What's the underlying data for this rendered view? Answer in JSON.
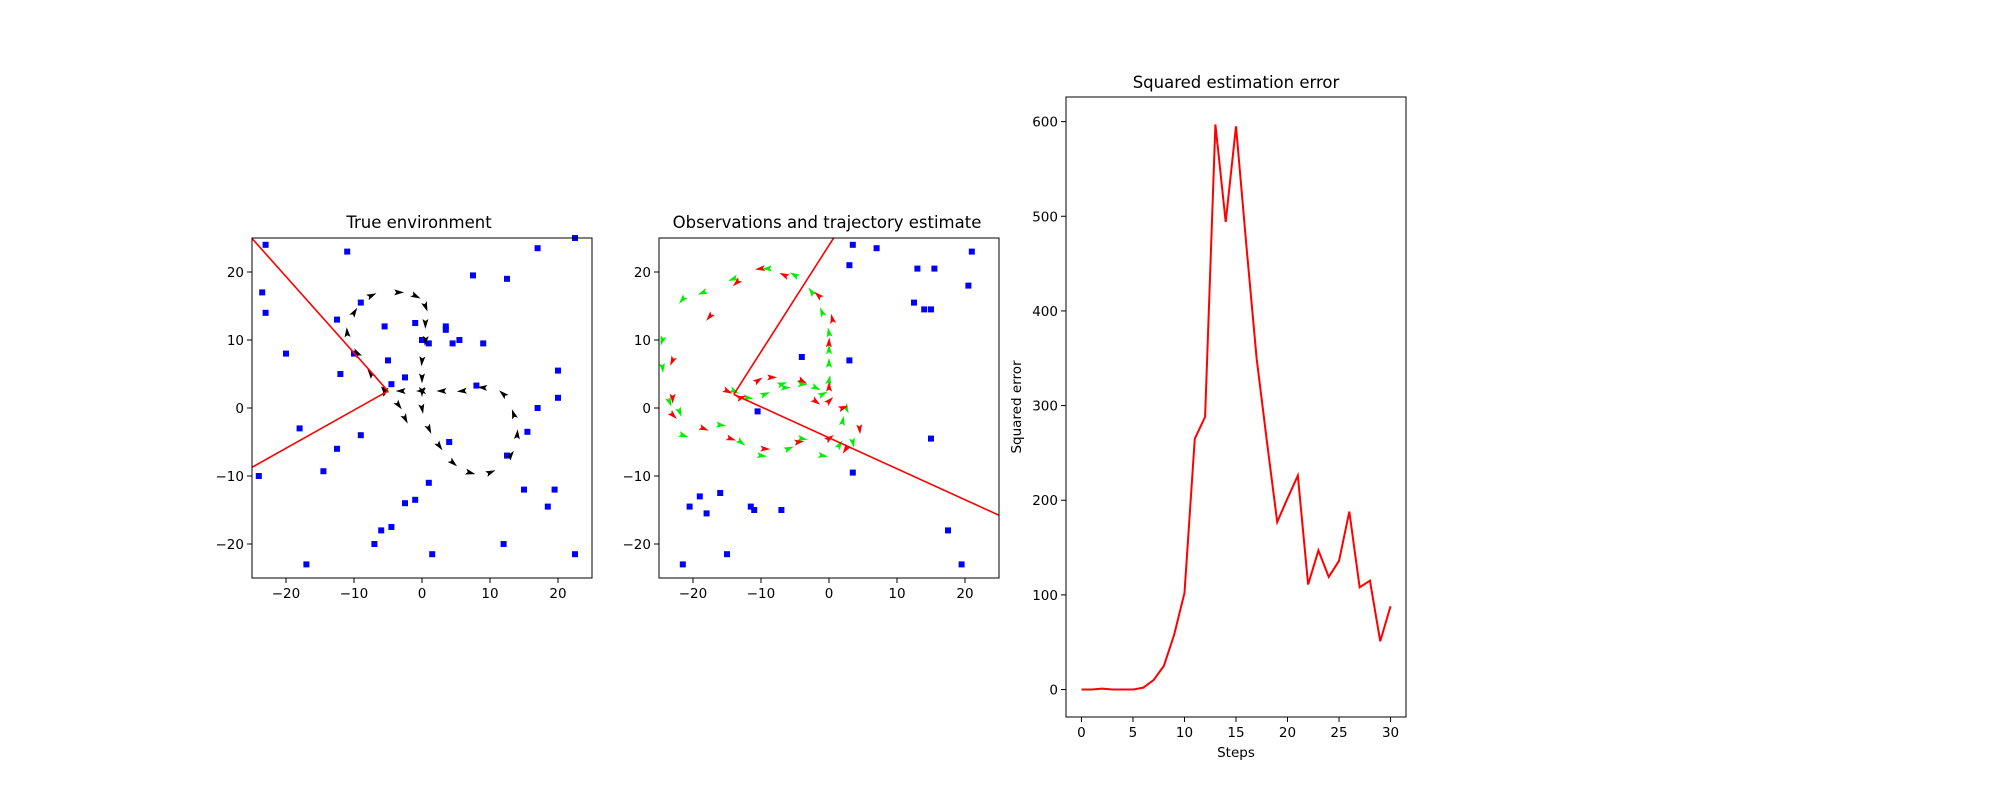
{
  "chart_data": [
    {
      "type": "scatter",
      "title": "True environment",
      "xlabel": "",
      "ylabel": "",
      "xlim": [
        -25,
        25
      ],
      "ylim": [
        -25,
        25
      ],
      "xticks": [
        -20,
        -10,
        0,
        10,
        20
      ],
      "yticks": [
        -20,
        -10,
        0,
        10,
        20
      ],
      "xtick_labels": [
        "−20",
        "−10",
        "0",
        "10",
        "20"
      ],
      "ytick_labels": [
        "−20",
        "−10",
        "0",
        "10",
        "20"
      ],
      "grid": false,
      "landmarks": {
        "color": "#0000ff",
        "points": [
          [
            -23,
            24
          ],
          [
            -11,
            23
          ],
          [
            17,
            23.5
          ],
          [
            22.5,
            25
          ],
          [
            -23.5,
            17
          ],
          [
            -23,
            14
          ],
          [
            7.5,
            19.5
          ],
          [
            12.5,
            19
          ],
          [
            -20,
            8
          ],
          [
            -12.5,
            13
          ],
          [
            -9,
            15.5
          ],
          [
            -5.5,
            12
          ],
          [
            -1,
            12.5
          ],
          [
            0,
            10
          ],
          [
            1,
            9.5
          ],
          [
            3.5,
            12
          ],
          [
            3.5,
            11.5
          ],
          [
            4.5,
            9.5
          ],
          [
            5.5,
            10
          ],
          [
            9,
            9.5
          ],
          [
            -12,
            5
          ],
          [
            -10,
            8
          ],
          [
            -5,
            7
          ],
          [
            -2.5,
            4.5
          ],
          [
            -4.5,
            3.5
          ],
          [
            8,
            3.3
          ],
          [
            17,
            0
          ],
          [
            20,
            5.5
          ],
          [
            20,
            1.5
          ],
          [
            -18,
            -3
          ],
          [
            -12.5,
            -6
          ],
          [
            -9,
            -4
          ],
          [
            -14.5,
            -9.3
          ],
          [
            -24,
            -10
          ],
          [
            4,
            -5
          ],
          [
            15.5,
            -3.5
          ],
          [
            12.5,
            -7
          ],
          [
            -1,
            -13.5
          ],
          [
            -2.5,
            -14
          ],
          [
            1,
            -11
          ],
          [
            -4.5,
            -17.5
          ],
          [
            -6,
            -18
          ],
          [
            -7,
            -20
          ],
          [
            -17,
            -23
          ],
          [
            1.5,
            -21.5
          ],
          [
            12,
            -20
          ],
          [
            15,
            -12
          ],
          [
            18.5,
            -14.5
          ],
          [
            19.5,
            -12
          ],
          [
            22.5,
            -21.5
          ]
        ]
      },
      "trajectory": {
        "color": "#000000",
        "points": [
          [
            -5.5,
            2.5
          ],
          [
            -7.5,
            5
          ],
          [
            -9.5,
            8
          ],
          [
            -11,
            11
          ],
          [
            -10,
            14
          ],
          [
            -7.5,
            16.5
          ],
          [
            -3.5,
            17
          ],
          [
            -1,
            16.5
          ],
          [
            0.5,
            15
          ],
          [
            0.5,
            12.5
          ],
          [
            0.5,
            10
          ],
          [
            0,
            7
          ],
          [
            0,
            4.5
          ],
          [
            0,
            2.5
          ],
          [
            0,
            0
          ],
          [
            1,
            -3
          ],
          [
            2.5,
            -5.5
          ],
          [
            4.5,
            -8
          ],
          [
            7,
            -9.5
          ],
          [
            10,
            -9.5
          ],
          [
            13,
            -7
          ],
          [
            14,
            -4
          ],
          [
            13.5,
            -1
          ],
          [
            12,
            2
          ],
          [
            9,
            3
          ],
          [
            6,
            2.5
          ],
          [
            3,
            2.5
          ],
          [
            0,
            2.5
          ],
          [
            -3,
            2.5
          ],
          [
            -5.5,
            2.5
          ],
          [
            -3.5,
            0.5
          ],
          [
            -2.5,
            -1.5
          ]
        ]
      },
      "observation_sector": {
        "color": "#ff0000",
        "apex": [
          -5,
          2.5
        ],
        "ray_ends": [
          [
            -25.5,
            25.5
          ],
          [
            -25.5,
            -9
          ]
        ]
      }
    },
    {
      "type": "scatter",
      "title": "Observations and trajectory estimate",
      "xlabel": "",
      "ylabel": "",
      "xlim": [
        -25,
        25
      ],
      "ylim": [
        -25,
        25
      ],
      "xticks": [
        -20,
        -10,
        0,
        10,
        20
      ],
      "yticks": [
        -20,
        -10,
        0,
        10,
        20
      ],
      "xtick_labels": [
        "−20",
        "−10",
        "0",
        "10",
        "20"
      ],
      "ytick_labels": [
        "−20",
        "−10",
        "0",
        "10",
        "20"
      ],
      "grid": false,
      "landmarks": {
        "color": "#0000ff",
        "points": [
          [
            3.5,
            24
          ],
          [
            7,
            23.5
          ],
          [
            21,
            23
          ],
          [
            3,
            21
          ],
          [
            13,
            20.5
          ],
          [
            15.5,
            20.5
          ],
          [
            20.5,
            18
          ],
          [
            12.5,
            15.5
          ],
          [
            14,
            14.5
          ],
          [
            15,
            14.5
          ],
          [
            -4,
            7.5
          ],
          [
            3,
            7
          ],
          [
            -10.5,
            -0.5
          ],
          [
            15,
            -4.5
          ],
          [
            3.5,
            -9.5
          ],
          [
            -20.5,
            -14.5
          ],
          [
            -19,
            -13
          ],
          [
            -18,
            -15.5
          ],
          [
            -16,
            -12.5
          ],
          [
            -11.5,
            -14.5
          ],
          [
            -11,
            -15
          ],
          [
            -7,
            -15
          ],
          [
            -15,
            -21.5
          ],
          [
            -21.5,
            -23
          ],
          [
            17.5,
            -18
          ],
          [
            19.5,
            -23
          ]
        ]
      },
      "estimate_trajectory": {
        "color": "#00ee00",
        "points": [
          [
            -14,
            2.5
          ],
          [
            -12,
            1.5
          ],
          [
            -9.5,
            2
          ],
          [
            -7,
            3.5
          ],
          [
            -6.5,
            3
          ],
          [
            -4,
            3.5
          ],
          [
            -2,
            3
          ],
          [
            -1,
            2
          ],
          [
            0,
            4
          ],
          [
            0,
            6.5
          ],
          [
            0,
            8.5
          ],
          [
            0,
            11
          ],
          [
            -1,
            14
          ],
          [
            -2.5,
            17
          ],
          [
            -5,
            19.5
          ],
          [
            -9,
            20.5
          ],
          [
            -14,
            19
          ],
          [
            -18.5,
            17
          ],
          [
            -21.5,
            16
          ],
          [
            -24.5,
            10
          ],
          [
            -24.5,
            6
          ],
          [
            -23.5,
            1
          ],
          [
            -22,
            -0.5
          ],
          [
            -21.5,
            -4
          ],
          [
            -16,
            -2.5
          ],
          [
            -13,
            -5
          ],
          [
            -10,
            -7
          ],
          [
            -6,
            -6
          ],
          [
            -4,
            -4.5
          ],
          [
            -1,
            -7
          ],
          [
            1.5,
            -5.5
          ],
          [
            2,
            -2
          ],
          [
            2.5,
            0
          ],
          [
            3.5,
            -5
          ]
        ]
      },
      "observations": {
        "color": "#ff0000",
        "points": [
          [
            -15,
            2.5
          ],
          [
            -13,
            1.5
          ],
          [
            -10.5,
            4
          ],
          [
            -8.5,
            4.5
          ],
          [
            -4,
            4
          ],
          [
            -2,
            1
          ],
          [
            0,
            1
          ],
          [
            0,
            3
          ],
          [
            0,
            9.5
          ],
          [
            0.5,
            13
          ],
          [
            -1.5,
            16.5
          ],
          [
            -6.5,
            19.5
          ],
          [
            -10,
            20.5
          ],
          [
            -13.5,
            18.5
          ],
          [
            -17.5,
            13.5
          ],
          [
            -23,
            7
          ],
          [
            -23,
            1.5
          ],
          [
            -23,
            -1
          ],
          [
            -18.5,
            -3
          ],
          [
            -14.5,
            -4.5
          ],
          [
            -9.5,
            -6
          ],
          [
            -4.5,
            -5
          ],
          [
            0,
            -4.5
          ],
          [
            2,
            0
          ],
          [
            4.5,
            -3
          ],
          [
            2.5,
            -6
          ]
        ]
      },
      "observation_sector": {
        "color": "#ff0000",
        "apex": [
          -14,
          2
        ],
        "ray_ends": [
          [
            1,
            25.5
          ],
          [
            25.5,
            -16
          ]
        ]
      }
    },
    {
      "type": "line",
      "title": "Squared estimation error",
      "xlabel": "Steps",
      "ylabel": "Squared error",
      "xlim": [
        -1.5,
        31.5
      ],
      "ylim": [
        -29,
        626
      ],
      "xticks": [
        0,
        5,
        10,
        15,
        20,
        25,
        30
      ],
      "yticks": [
        0,
        100,
        200,
        300,
        400,
        500,
        600
      ],
      "xtick_labels": [
        "0",
        "5",
        "10",
        "15",
        "20",
        "25",
        "30"
      ],
      "ytick_labels": [
        "0",
        "100",
        "200",
        "300",
        "400",
        "500",
        "600"
      ],
      "grid": false,
      "series": [
        {
          "name": "",
          "color": "#ff0000",
          "x": [
            0,
            1,
            2,
            3,
            4,
            5,
            6,
            7,
            8,
            9,
            10,
            11,
            12,
            13,
            14,
            15,
            16,
            17,
            18,
            19,
            20,
            21,
            22,
            23,
            24,
            25,
            26,
            27,
            28,
            29,
            30
          ],
          "values": [
            0,
            0,
            1,
            0,
            0,
            0,
            2,
            10,
            25,
            58,
            102,
            265,
            288,
            597,
            494,
            595,
            470,
            350,
            262,
            177,
            202,
            226,
            111,
            147,
            119,
            136,
            188,
            108,
            115,
            51,
            88
          ]
        }
      ]
    }
  ]
}
